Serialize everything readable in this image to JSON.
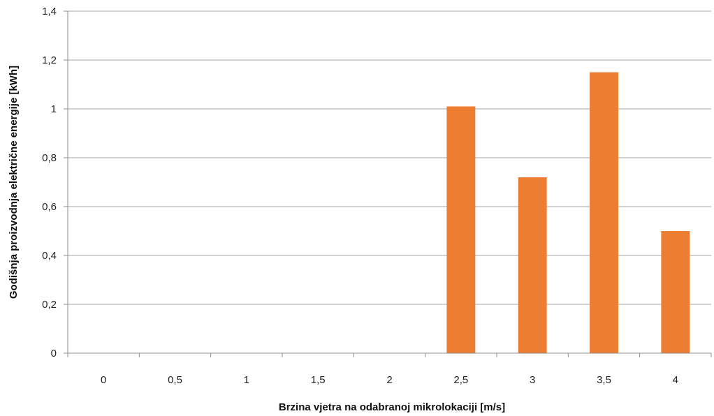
{
  "chart_data": {
    "type": "bar",
    "title": "",
    "xlabel": "Brzina vjetra na odabranoj mikrolokaciji  [m/s]",
    "ylabel": "Godišnja  proizvodnja  električne energije  [kWh]",
    "categories": [
      "0",
      "0,5",
      "1",
      "1,5",
      "2",
      "2,5",
      "3",
      "3,5",
      "4"
    ],
    "values": [
      0,
      0,
      0,
      0,
      0,
      1.01,
      0.72,
      1.15,
      0.5
    ],
    "ylim": [
      0,
      1.4
    ],
    "yticks": [
      0,
      0.2,
      0.4,
      0.6,
      0.8,
      1,
      1.2,
      1.4
    ],
    "ytick_labels": [
      "0",
      "0,2",
      "0,4",
      "0,6",
      "0,8",
      "1",
      "1,2",
      "1,4"
    ],
    "grid": true,
    "legend": "none",
    "colors": {
      "bar": "#ED7D31",
      "grid": "#A6A6A6",
      "axis": "#8C8C8C"
    }
  }
}
